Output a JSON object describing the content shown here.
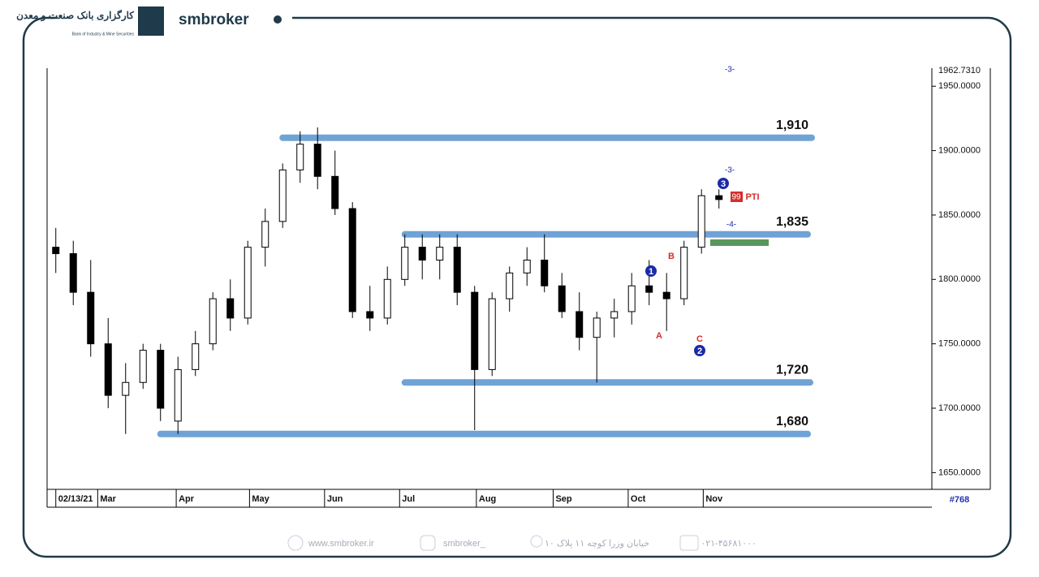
{
  "header": {
    "brand": "smbroker",
    "bank_name_fa": "کارگزاری بانک صنعت و معدن",
    "bank_name_en": "Bank of Industry & Mine Securities"
  },
  "chart_data": {
    "type": "candlestick",
    "ylim": [
      1637,
      1964
    ],
    "yticks": [
      {
        "value": 1650,
        "label": "1650.0000"
      },
      {
        "value": 1700,
        "label": "1700.0000"
      },
      {
        "value": 1750,
        "label": "1750.0000"
      },
      {
        "value": 1800,
        "label": "1800.0000"
      },
      {
        "value": 1850,
        "label": "1850.0000"
      },
      {
        "value": 1900,
        "label": "1900.0000"
      },
      {
        "value": 1950,
        "label": "1950.0000"
      }
    ],
    "top_price_label": "1962.7310",
    "xlim": [
      -0.5,
      50.2
    ],
    "xticks": [
      {
        "value": 0,
        "label": "02/13/21"
      },
      {
        "value": 2.4,
        "label": "Mar"
      },
      {
        "value": 6.9,
        "label": "Apr"
      },
      {
        "value": 11.1,
        "label": "May"
      },
      {
        "value": 15.4,
        "label": "Jun"
      },
      {
        "value": 19.7,
        "label": "Jul"
      },
      {
        "value": 24.1,
        "label": "Aug"
      },
      {
        "value": 28.5,
        "label": "Sep"
      },
      {
        "value": 32.8,
        "label": "Oct"
      },
      {
        "value": 37.1,
        "label": "Nov"
      }
    ],
    "open": [
      1825,
      1820,
      1790,
      1750,
      1710,
      1720,
      1745,
      1690,
      1730,
      1750,
      1785,
      1770,
      1825,
      1845,
      1885,
      1905,
      1880,
      1855,
      1775,
      1770,
      1800,
      1825,
      1815,
      1825,
      1790,
      1730,
      1785,
      1805,
      1815,
      1795,
      1775,
      1755,
      1770,
      1775,
      1795,
      1790,
      1785,
      1825,
      1865
    ],
    "high": [
      1840,
      1830,
      1815,
      1770,
      1735,
      1750,
      1750,
      1740,
      1760,
      1790,
      1800,
      1830,
      1855,
      1890,
      1915,
      1918,
      1900,
      1860,
      1795,
      1810,
      1835,
      1835,
      1835,
      1835,
      1795,
      1790,
      1810,
      1825,
      1835,
      1805,
      1790,
      1775,
      1785,
      1805,
      1815,
      1805,
      1830,
      1870,
      1870
    ],
    "low": [
      1805,
      1780,
      1740,
      1700,
      1680,
      1715,
      1690,
      1680,
      1725,
      1745,
      1760,
      1765,
      1810,
      1840,
      1875,
      1870,
      1850,
      1770,
      1760,
      1765,
      1795,
      1800,
      1800,
      1780,
      1683,
      1725,
      1775,
      1795,
      1790,
      1770,
      1745,
      1720,
      1755,
      1765,
      1780,
      1760,
      1780,
      1820,
      1855
    ],
    "close": [
      1820,
      1790,
      1750,
      1710,
      1720,
      1745,
      1700,
      1730,
      1750,
      1785,
      1770,
      1825,
      1845,
      1885,
      1905,
      1880,
      1855,
      1775,
      1770,
      1800,
      1825,
      1815,
      1825,
      1790,
      1730,
      1785,
      1805,
      1815,
      1795,
      1775,
      1755,
      1770,
      1775,
      1795,
      1790,
      1785,
      1825,
      1865,
      1862
    ],
    "levels": [
      {
        "value": 1910,
        "label": "1,910"
      },
      {
        "value": 1835,
        "label": "1,835"
      },
      {
        "value": 1720,
        "label": "1,720"
      },
      {
        "value": 1680,
        "label": "1,680"
      }
    ],
    "annotations": [
      "1",
      "2",
      "3",
      "A",
      "B",
      "C",
      "99",
      "PTI",
      "-3-",
      "-4-",
      "-3-"
    ],
    "symbol_count": "#768"
  },
  "footer": {
    "website": "www.smbroker.ir",
    "instagram": "smbroker_",
    "address": "خیابان وزرا کوچه ۱۱ پلاک ۱۰",
    "phone": "۰۲۱-۴۵۶۸۱۰۰۰"
  }
}
